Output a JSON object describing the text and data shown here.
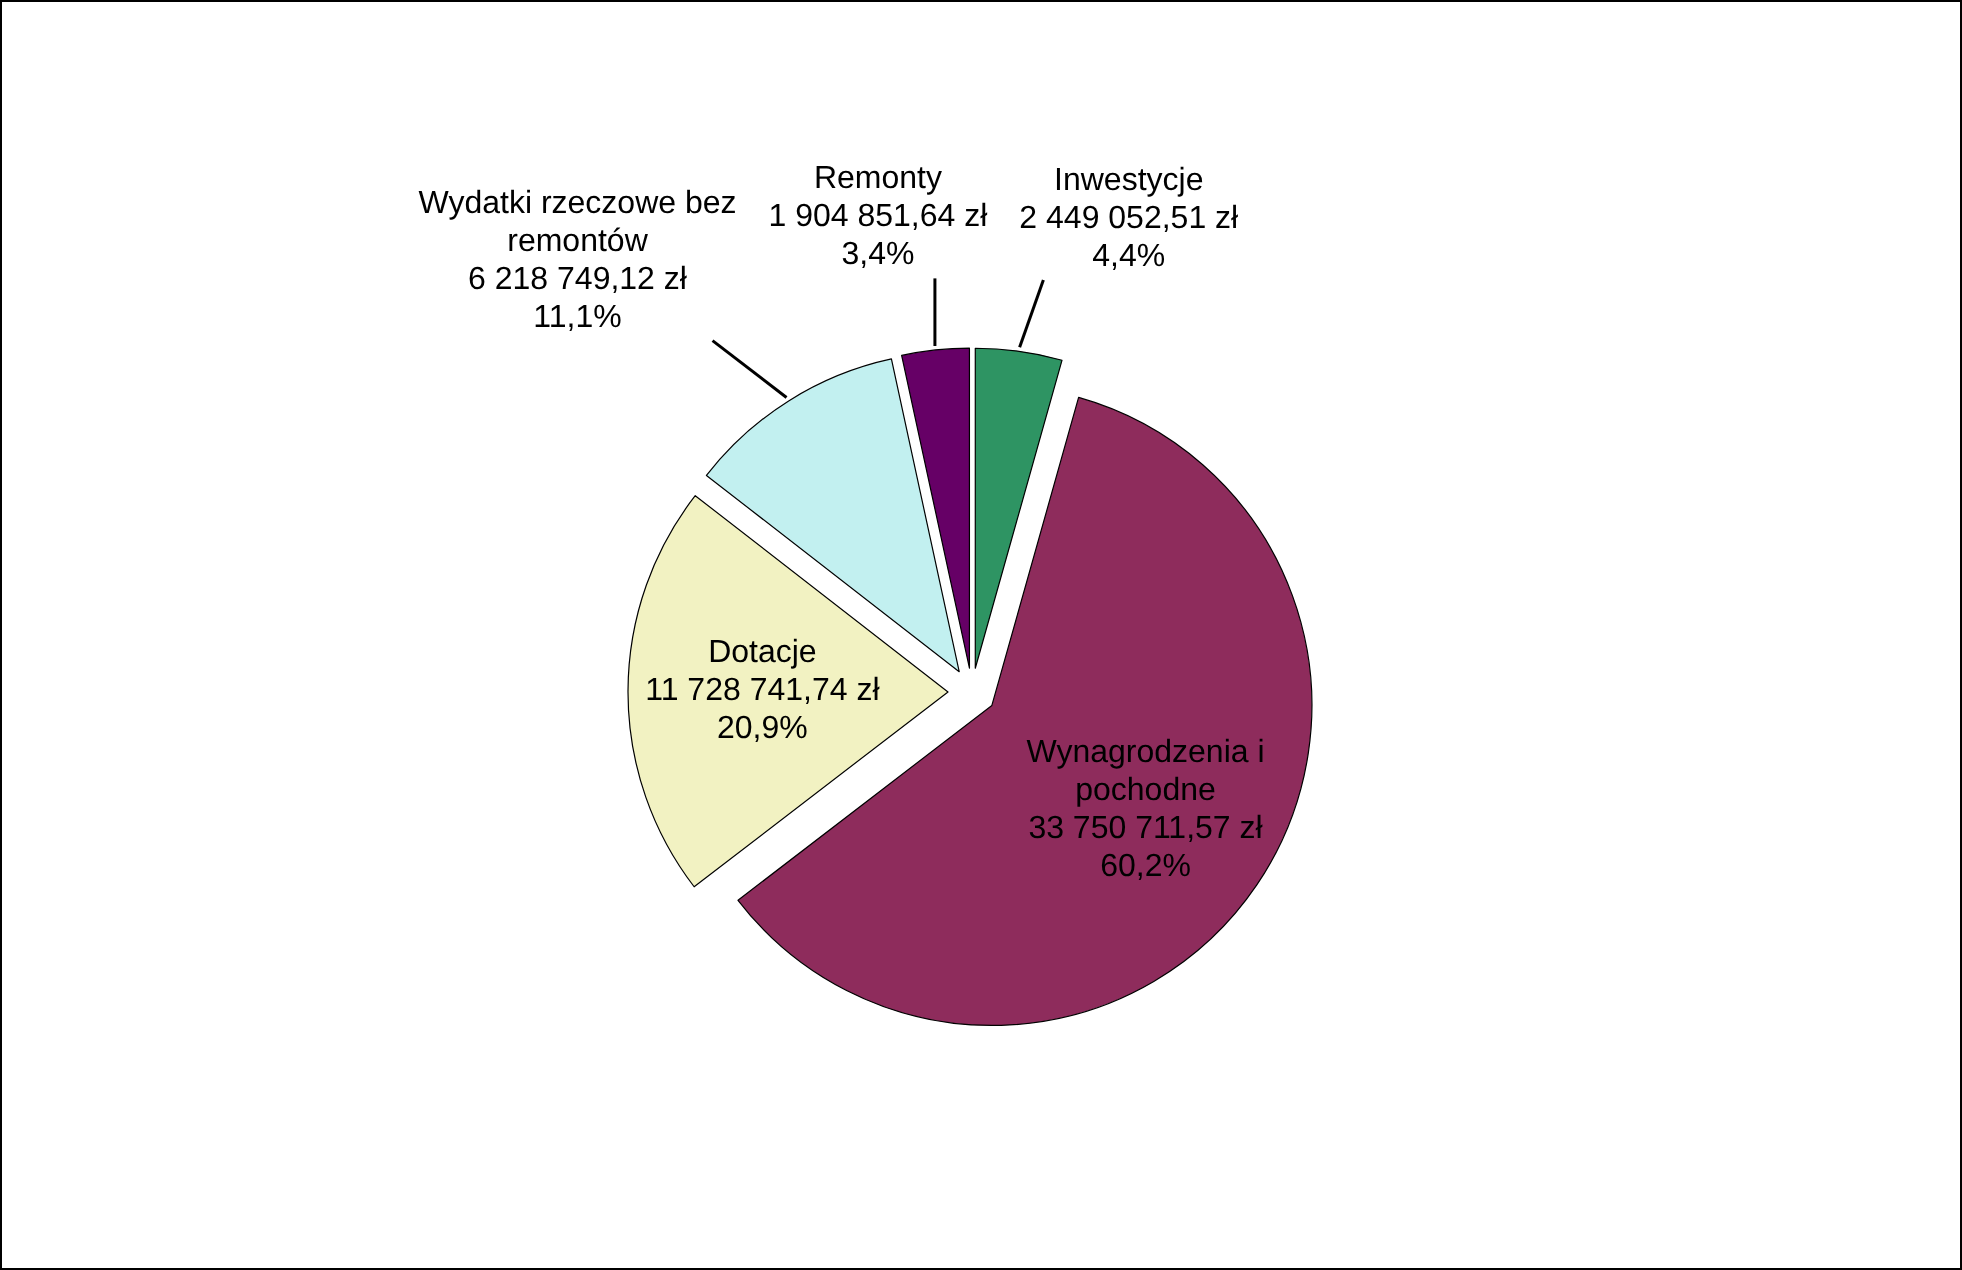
{
  "chart_data": {
    "type": "pie",
    "categories": [
      "Inwestycje",
      "Wynagrodzenia i pochodne",
      "Dotacje",
      "Wydatki rzeczowe bez remontów",
      "Remonty"
    ],
    "values": [
      2449052.51,
      33750711.57,
      11728741.74,
      6218749.12,
      1904851.64
    ],
    "colors": [
      "#2e9463",
      "#8e2c5c",
      "#f2f2c2",
      "#c2f0f0",
      "#660066"
    ],
    "value_labels": [
      "2 449 052,51 zł\n4,4%",
      "33 750 711,57 zł\n60,2%",
      "11 728 741,74 zł\n20,9%",
      "6 218 749,12 zł\n11,1%",
      "1 904 851,64 zł\n3,4%"
    ]
  }
}
